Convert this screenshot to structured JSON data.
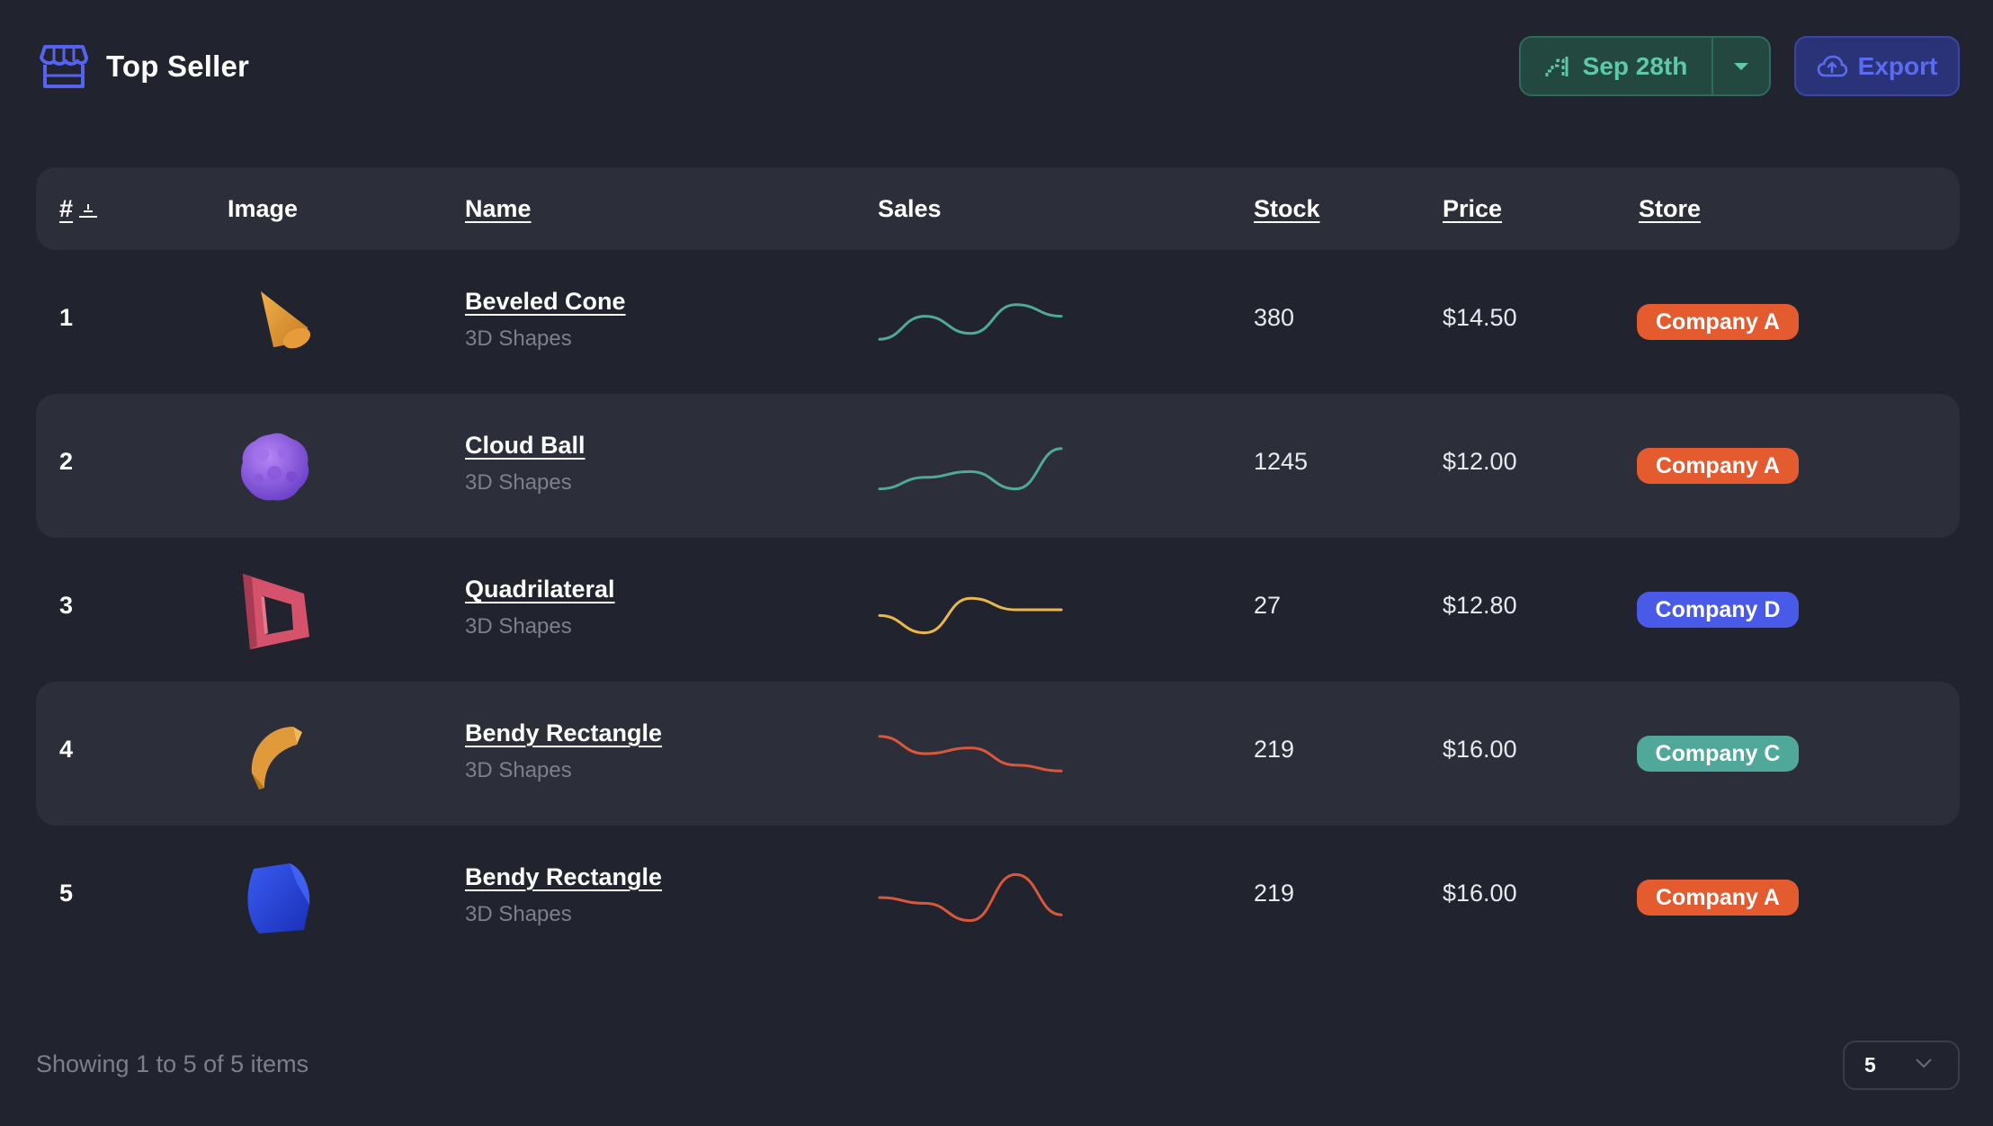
{
  "header": {
    "title": "Top Seller",
    "title_icon": "store-icon",
    "date_button": {
      "label": "Sep 28th",
      "icon": "trend-icon",
      "accent": "#5ec9a8"
    },
    "export_button": {
      "label": "Export",
      "icon": "cloud-upload-icon",
      "accent": "#5b6cf0"
    }
  },
  "table": {
    "columns": [
      "#",
      "Image",
      "Name",
      "Sales",
      "Stock",
      "Price",
      "Store"
    ],
    "rows": [
      {
        "rank": "1",
        "name": "Beveled Cone",
        "category": "3D Shapes",
        "stock": "380",
        "price": "$14.50",
        "store": "Company A",
        "store_color": "#e35b2e",
        "image": "orange-cone",
        "sales_color": "#4fa899",
        "sales_trend": [
          2,
          6,
          3,
          8,
          6
        ]
      },
      {
        "rank": "2",
        "name": "Cloud Ball",
        "category": "3D Shapes",
        "stock": "1245",
        "price": "$12.00",
        "store": "Company A",
        "store_color": "#e35b2e",
        "image": "purple-blob",
        "sales_color": "#4fa899",
        "sales_trend": [
          1,
          3,
          4,
          1,
          8
        ]
      },
      {
        "rank": "3",
        "name": "Quadrilateral",
        "category": "3D Shapes",
        "stock": "27",
        "price": "$12.80",
        "store": "Company D",
        "store_color": "#4a5ae8",
        "image": "pink-frame",
        "sales_color": "#e8b84a",
        "sales_trend": [
          4,
          1,
          7,
          5,
          5
        ]
      },
      {
        "rank": "4",
        "name": "Bendy Rectangle",
        "category": "3D Shapes",
        "stock": "219",
        "price": "$16.00",
        "store": "Company C",
        "store_color": "#4fa899",
        "image": "orange-arc",
        "sales_color": "#d9583a",
        "sales_trend": [
          8,
          5,
          6,
          3,
          2
        ]
      },
      {
        "rank": "5",
        "name": "Bendy Rectangle",
        "category": "3D Shapes",
        "stock": "219",
        "price": "$16.00",
        "store": "Company A",
        "store_color": "#e35b2e",
        "image": "blue-cube",
        "sales_color": "#d9583a",
        "sales_trend": [
          5,
          4,
          1,
          9,
          2
        ]
      }
    ]
  },
  "footer": {
    "showing_text": "Showing 1 to 5 of 5 items",
    "page_size": "5"
  }
}
